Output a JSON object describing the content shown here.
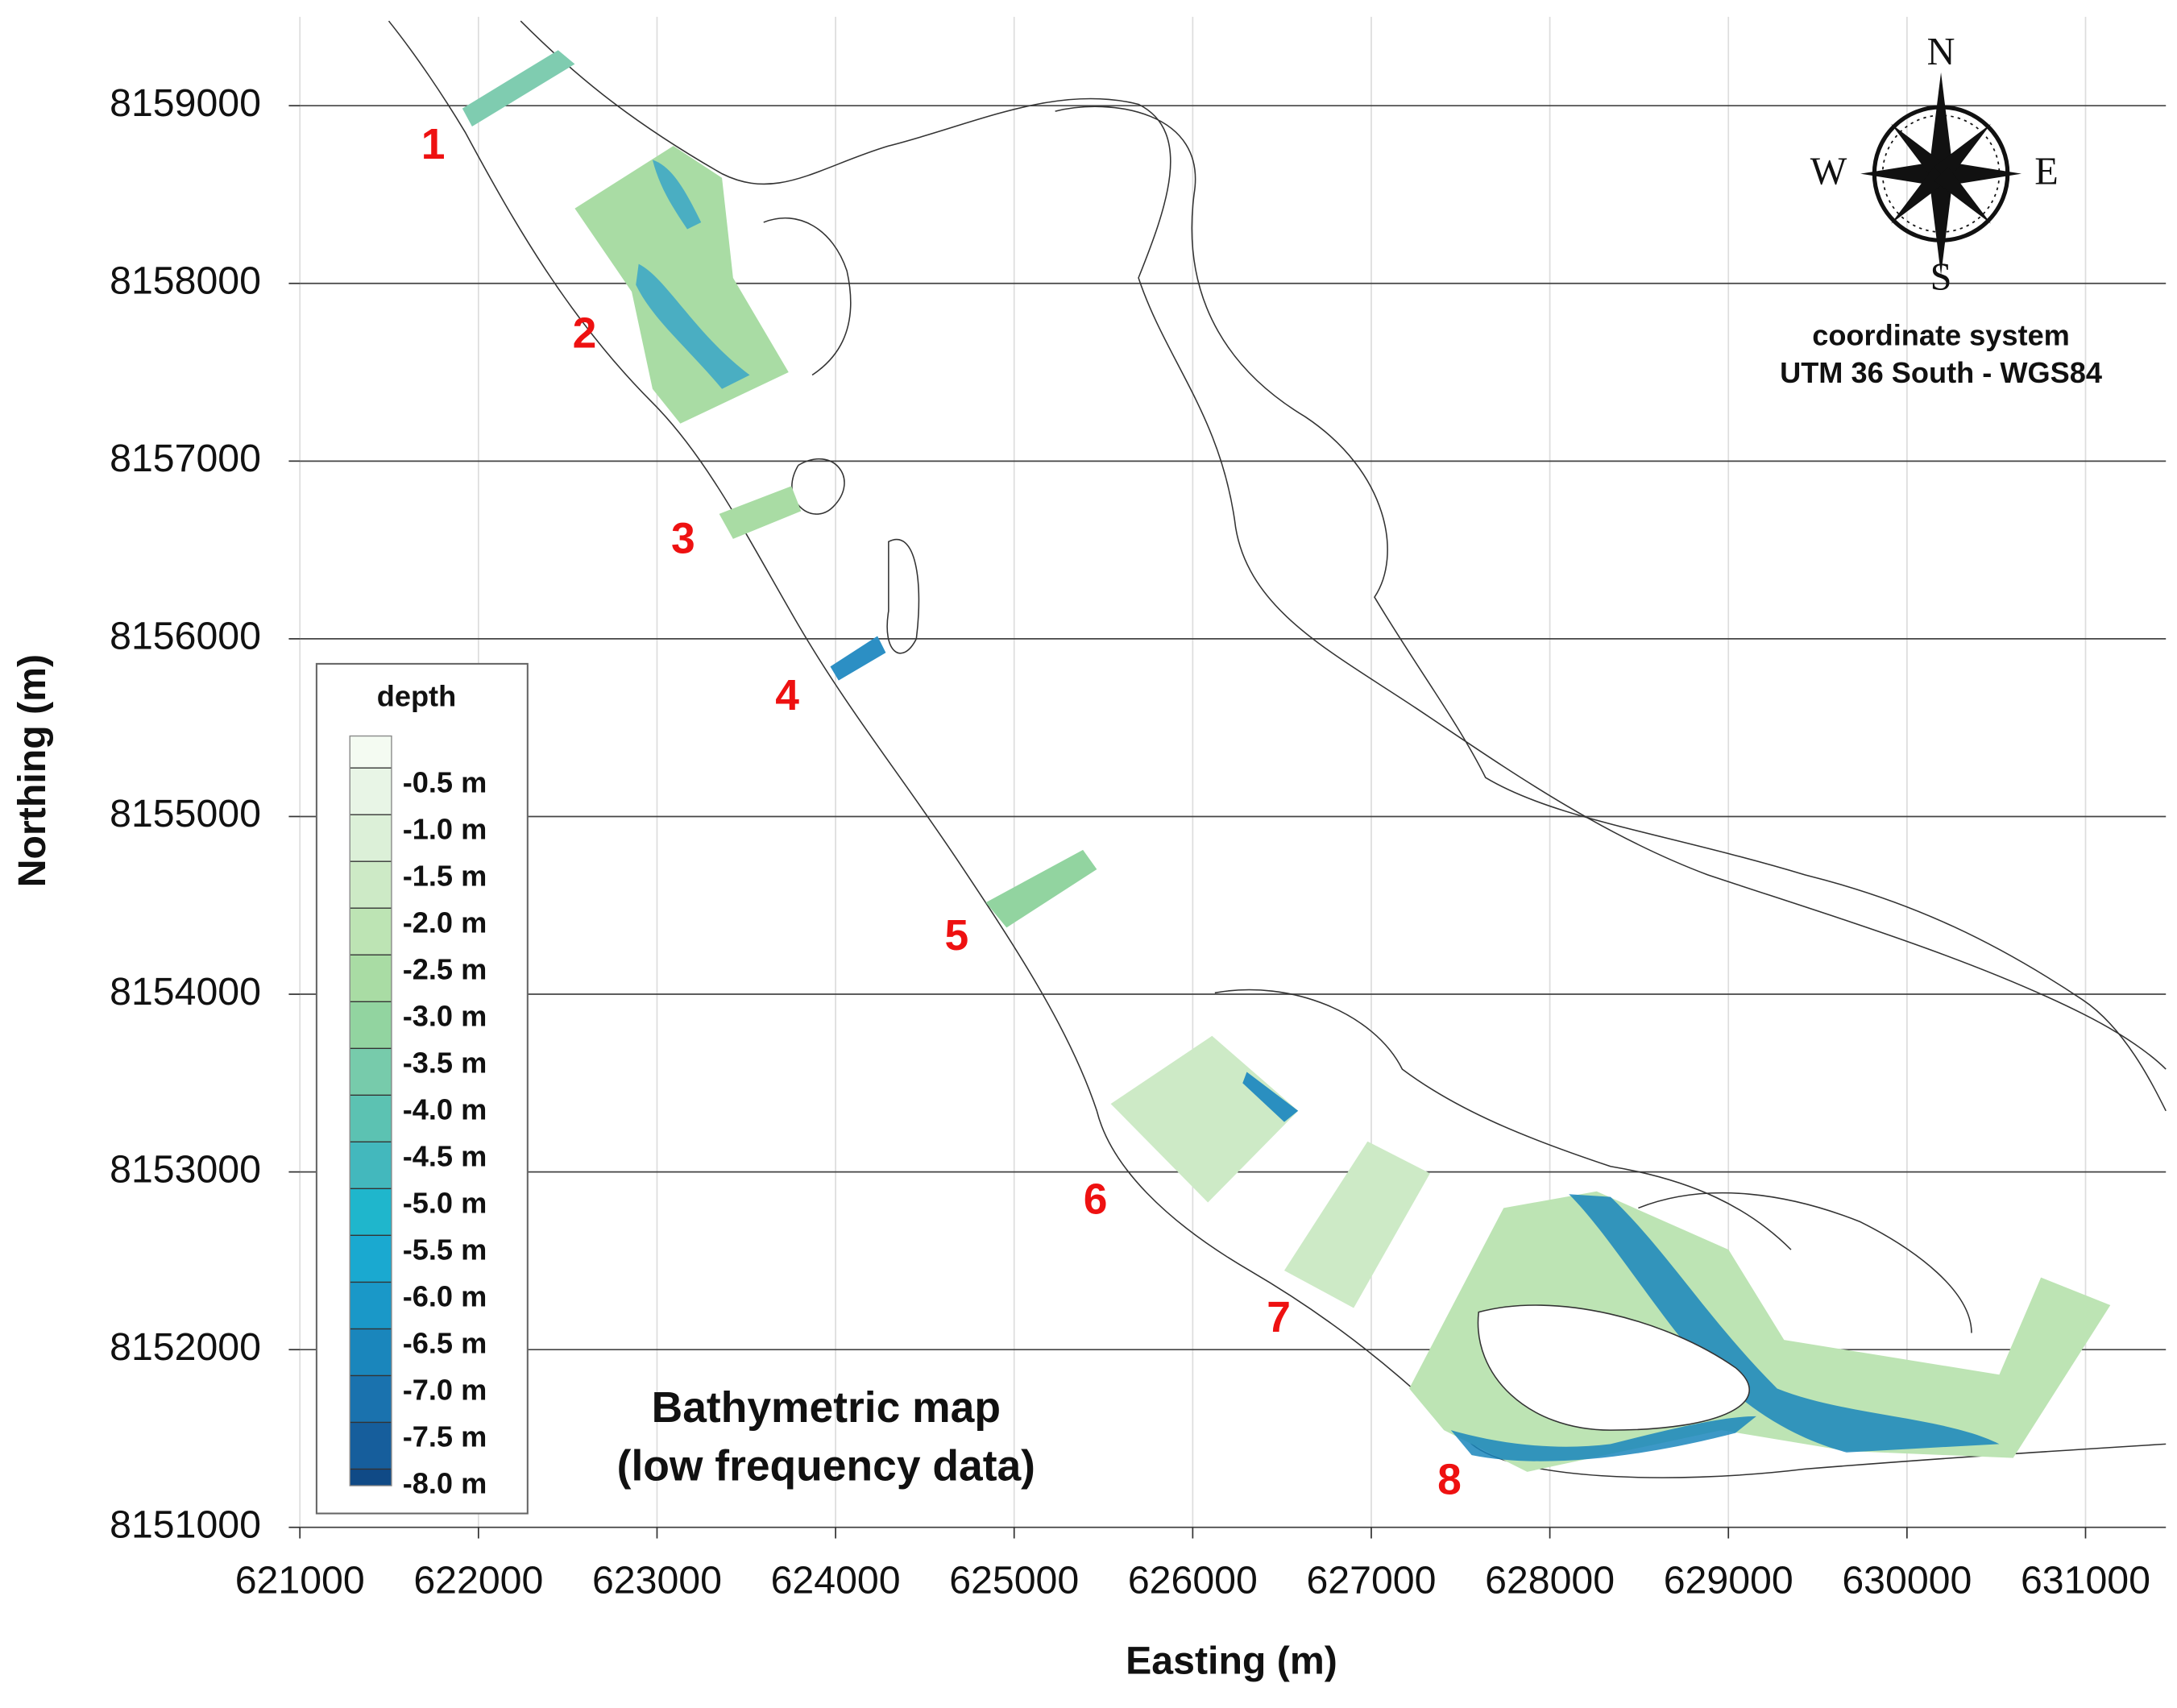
{
  "map": {
    "title": [
      "Bathymetric map",
      "(low frequency data)"
    ],
    "x_label": "Easting (m)",
    "y_label": "Northing (m)",
    "xlim": [
      621000,
      631450
    ],
    "xticks": [
      621000,
      622000,
      623000,
      624000,
      625000,
      626000,
      627000,
      628000,
      629000,
      630000,
      631000
    ],
    "ylim": [
      8151000,
      8159500
    ],
    "yticks": [
      8151000,
      8152000,
      8153000,
      8154000,
      8155000,
      8156000,
      8157000,
      8158000,
      8159000
    ],
    "grid": true,
    "compass": {
      "north": "N",
      "south": "S",
      "west": "W",
      "east": "E"
    },
    "coordinate_system": [
      "coordinate system",
      "UTM 36 South - WGS84"
    ],
    "survey_areas": [
      "1",
      "2",
      "3",
      "4",
      "5",
      "6",
      "7",
      "8"
    ],
    "label_color": "#ee1111",
    "legend": {
      "title": "depth",
      "labels": [
        "-0.5 m",
        "-1.0 m",
        "-1.5 m",
        "-2.0 m",
        "-2.5 m",
        "-3.0 m",
        "-3.5 m",
        "-4.0 m",
        "-4.5 m",
        "-5.0 m",
        "-5.5 m",
        "-6.0 m",
        "-6.5 m",
        "-7.0 m",
        "-7.5 m",
        "-8.0 m"
      ],
      "colors": [
        "#f4fbf2",
        "#e8f5e6",
        "#dcf0d8",
        "#cdeac6",
        "#bde4b4",
        "#a9dca4",
        "#92d4a0",
        "#77cbab",
        "#5cc2b2",
        "#43b8bd",
        "#1fb6cc",
        "#1aa9d0",
        "#1a98c8",
        "#1a86bc",
        "#1a72ae",
        "#165e9c",
        "#104a86"
      ]
    }
  }
}
